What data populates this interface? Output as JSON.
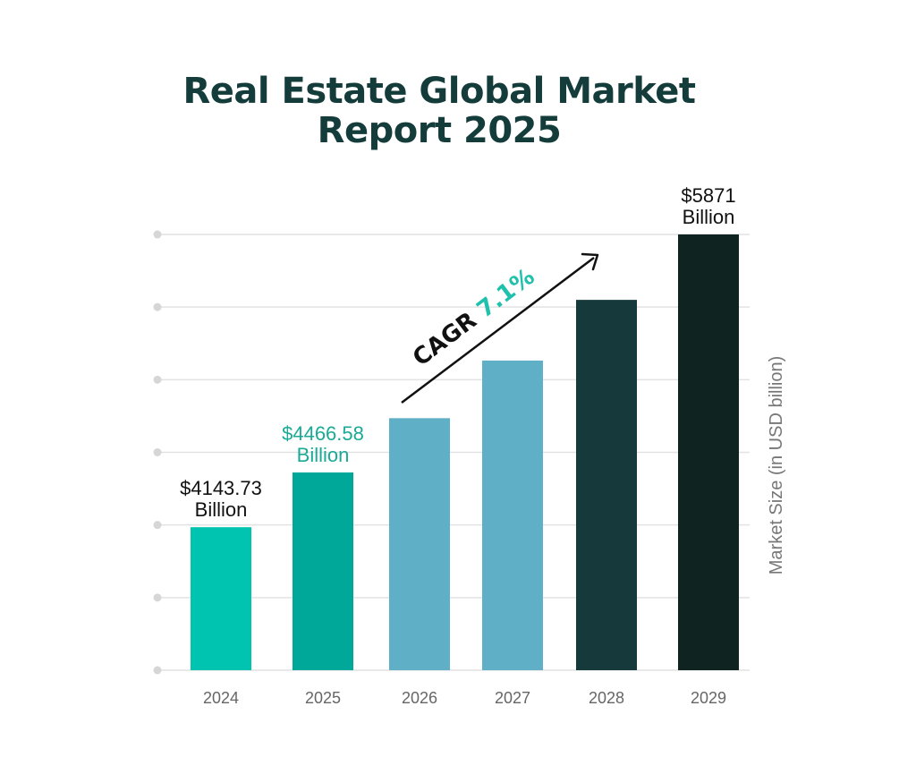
{
  "title": {
    "line1": "Real Estate Global Market",
    "line2": "Report 2025",
    "color": "#143c3a"
  },
  "chart_data": {
    "type": "bar",
    "categories": [
      "2024",
      "2025",
      "2026",
      "2027",
      "2028",
      "2029"
    ],
    "values": [
      4143.73,
      4466.58,
      4787,
      5127,
      5485,
      5871
    ],
    "bar_colors": [
      "#00c4b0",
      "#00a89a",
      "#5fb0c6",
      "#5fb0c6",
      "#16393b",
      "#0f2421"
    ],
    "data_labels": [
      {
        "index": 0,
        "line1": "$4143.73",
        "line2": "Billion",
        "color": "#111111"
      },
      {
        "index": 1,
        "line1": "$4466.58",
        "line2": "Billion",
        "color": "#1aaa96"
      },
      {
        "index": 5,
        "line1": "$5871",
        "line2": "Billion",
        "color": "#111111"
      }
    ],
    "ylabel": "Market Size (in USD billion)",
    "ylim": [
      3300,
      5871
    ],
    "grid": true,
    "annotation": {
      "prefix": "CAGR ",
      "value": "7.1%",
      "prefix_color": "#111111",
      "value_color": "#1fc0ac"
    },
    "tick_label_color": "#666666",
    "grid_color": "#e2e2e2"
  }
}
